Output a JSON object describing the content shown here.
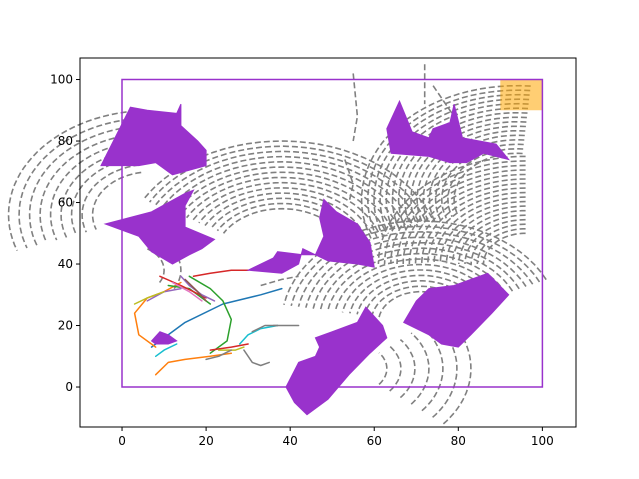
{
  "chart_data": {
    "type": "line",
    "title": "",
    "xlabel": "",
    "ylabel": "",
    "xlim": [
      -10,
      108
    ],
    "ylim": [
      -13,
      107
    ],
    "x_ticks": [
      0,
      20,
      40,
      60,
      80,
      100
    ],
    "y_ticks": [
      0,
      20,
      40,
      60,
      80,
      100
    ],
    "grid": false,
    "colors": {
      "boundary": "#9932CC",
      "obstacle": "#9932CC",
      "goal": "#FFA500",
      "explored": "#808080"
    },
    "boundary": [
      [
        0,
        0
      ],
      [
        100,
        0
      ],
      [
        100,
        100
      ],
      [
        0,
        100
      ]
    ],
    "goal_region": [
      [
        90,
        90
      ],
      [
        100,
        90
      ],
      [
        100,
        100
      ],
      [
        90,
        100
      ]
    ],
    "obstacles": [
      [
        [
          -5,
          72
        ],
        [
          2,
          91
        ],
        [
          6,
          90
        ],
        [
          13,
          89
        ],
        [
          14,
          92
        ],
        [
          14,
          85
        ],
        [
          18,
          80
        ],
        [
          20,
          77
        ],
        [
          20,
          72
        ],
        [
          12,
          69
        ],
        [
          8,
          73
        ],
        [
          4,
          72
        ]
      ],
      [
        [
          -4,
          53
        ],
        [
          7,
          57
        ],
        [
          15,
          63
        ],
        [
          17,
          64
        ],
        [
          15,
          59
        ],
        [
          15,
          52
        ],
        [
          22,
          48
        ],
        [
          19,
          45
        ],
        [
          16,
          43
        ],
        [
          12,
          40
        ],
        [
          7,
          44
        ],
        [
          4,
          49
        ]
      ],
      [
        [
          30,
          38
        ],
        [
          36,
          42
        ],
        [
          37,
          44
        ],
        [
          43,
          43
        ],
        [
          46,
          43
        ],
        [
          48,
          49
        ],
        [
          47,
          55
        ],
        [
          48,
          61
        ],
        [
          51,
          57
        ],
        [
          56,
          53
        ],
        [
          59,
          47
        ],
        [
          60,
          39
        ],
        [
          56,
          40
        ],
        [
          49,
          41
        ],
        [
          43,
          45
        ],
        [
          42,
          40
        ],
        [
          38,
          37
        ]
      ],
      [
        [
          64,
          76
        ],
        [
          63,
          84
        ],
        [
          66,
          93
        ],
        [
          69,
          83
        ],
        [
          73,
          81
        ],
        [
          74,
          84
        ],
        [
          78,
          86
        ],
        [
          79,
          92
        ],
        [
          81,
          81
        ],
        [
          89,
          79
        ],
        [
          92,
          74
        ],
        [
          86,
          76
        ],
        [
          82,
          73
        ],
        [
          78,
          73
        ],
        [
          73,
          75
        ]
      ],
      [
        [
          67,
          21
        ],
        [
          70,
          28
        ],
        [
          73,
          32
        ],
        [
          79,
          33
        ],
        [
          87,
          37
        ],
        [
          92,
          30
        ],
        [
          88,
          24
        ],
        [
          83,
          17
        ],
        [
          80,
          13
        ],
        [
          76,
          14
        ],
        [
          73,
          17
        ]
      ],
      [
        [
          42,
          8
        ],
        [
          46,
          10
        ],
        [
          47,
          13
        ],
        [
          46,
          16
        ],
        [
          50,
          18
        ],
        [
          56,
          21
        ],
        [
          58,
          26
        ],
        [
          62,
          20
        ],
        [
          63,
          16
        ],
        [
          59,
          11
        ],
        [
          54,
          4
        ],
        [
          49,
          -4
        ],
        [
          44,
          -9
        ],
        [
          41,
          -5
        ],
        [
          39,
          0
        ]
      ],
      [
        [
          7,
          15
        ],
        [
          9,
          18
        ],
        [
          11,
          17
        ],
        [
          13,
          15
        ],
        [
          11,
          14
        ],
        [
          8,
          14
        ]
      ]
    ],
    "explored_fans": [
      {
        "cx": 94,
        "cy": 61,
        "r0": 15,
        "r1": 37,
        "a0": 85,
        "a1": 200,
        "rings": 16
      },
      {
        "cx": 96,
        "cy": 40,
        "r0": 10,
        "r1": 35,
        "a0": 90,
        "a1": 180,
        "rings": 18
      },
      {
        "cx": 38,
        "cy": 42,
        "r0": 16,
        "r1": 38,
        "a0": 20,
        "a1": 150,
        "rings": 14
      },
      {
        "cx": 71,
        "cy": 21,
        "r0": 10,
        "r1": 33,
        "a0": 25,
        "a1": 170,
        "rings": 14
      },
      {
        "cx": 55,
        "cy": 6,
        "r0": 8,
        "r1": 28,
        "a0": -40,
        "a1": 40,
        "rings": 7
      },
      {
        "cx": 7,
        "cy": 56,
        "r0": 14,
        "r1": 34,
        "a0": 100,
        "a1": 200,
        "rings": 9
      },
      {
        "cx": 2,
        "cy": 38,
        "r0": 8,
        "r1": 12,
        "a0": -30,
        "a1": 60,
        "rings": 2
      }
    ],
    "explored_segments": [
      [
        [
          55,
          102
        ],
        [
          56,
          88
        ],
        [
          55,
          80
        ]
      ],
      [
        [
          72,
          105
        ],
        [
          72,
          92
        ]
      ],
      [
        [
          74,
          98
        ],
        [
          80,
          86
        ]
      ],
      [
        [
          53,
          74
        ],
        [
          55,
          66
        ],
        [
          54,
          60
        ]
      ],
      [
        [
          33,
          33
        ],
        [
          38,
          35
        ],
        [
          42,
          36
        ]
      ]
    ],
    "series": [
      {
        "color": "#1f77b4",
        "points": [
          [
            7,
            13
          ],
          [
            15,
            21
          ],
          [
            24,
            27
          ],
          [
            33,
            30
          ],
          [
            38,
            32
          ]
        ]
      },
      {
        "color": "#ff7f0e",
        "points": [
          [
            8,
            4
          ],
          [
            11,
            8
          ],
          [
            15,
            9
          ],
          [
            21,
            10
          ],
          [
            26,
            11
          ]
        ]
      },
      {
        "color": "#ff7f0e",
        "points": [
          [
            8,
            13
          ],
          [
            4,
            17
          ],
          [
            3,
            24
          ],
          [
            6,
            29
          ],
          [
            10,
            31
          ],
          [
            14,
            34
          ]
        ]
      },
      {
        "color": "#2ca02c",
        "points": [
          [
            16,
            36
          ],
          [
            21,
            32
          ],
          [
            24,
            28
          ],
          [
            26,
            22
          ],
          [
            25,
            15
          ],
          [
            21,
            11
          ]
        ]
      },
      {
        "color": "#2ca02c",
        "points": [
          [
            11,
            33
          ],
          [
            16,
            32
          ],
          [
            19,
            29
          ],
          [
            21,
            27
          ]
        ]
      },
      {
        "color": "#d62728",
        "points": [
          [
            9,
            36
          ],
          [
            14,
            33
          ],
          [
            17,
            31
          ],
          [
            20,
            29
          ]
        ]
      },
      {
        "color": "#d62728",
        "points": [
          [
            17,
            36
          ],
          [
            21,
            37
          ],
          [
            26,
            38
          ],
          [
            30,
            38
          ]
        ]
      },
      {
        "color": "#d62728",
        "points": [
          [
            21,
            12
          ],
          [
            26,
            13
          ],
          [
            30,
            14
          ]
        ]
      },
      {
        "color": "#9467bd",
        "points": [
          [
            14,
            36
          ],
          [
            16,
            33
          ],
          [
            19,
            30
          ],
          [
            22,
            28
          ]
        ]
      },
      {
        "color": "#9467bd",
        "points": [
          [
            6,
            28
          ],
          [
            10,
            31
          ],
          [
            14,
            32
          ]
        ]
      },
      {
        "color": "#8c564b",
        "points": [
          [
            15,
            35
          ],
          [
            18,
            31
          ],
          [
            20,
            28
          ]
        ]
      },
      {
        "color": "#e377c2",
        "points": [
          [
            12,
            34
          ],
          [
            16,
            31
          ],
          [
            19,
            28
          ]
        ]
      },
      {
        "color": "#bcbd22",
        "points": [
          [
            3,
            27
          ],
          [
            6,
            29
          ],
          [
            10,
            31
          ]
        ]
      },
      {
        "color": "#bcbd22",
        "points": [
          [
            23,
            12
          ],
          [
            27,
            12
          ],
          [
            29,
            13
          ]
        ]
      },
      {
        "color": "#17becf",
        "points": [
          [
            8,
            10
          ],
          [
            10,
            12
          ],
          [
            13,
            14
          ]
        ]
      },
      {
        "color": "#17becf",
        "points": [
          [
            28,
            14
          ],
          [
            30,
            17
          ],
          [
            33,
            19
          ],
          [
            37,
            20
          ]
        ]
      },
      {
        "color": "#7f7f7f",
        "points": [
          [
            29,
            12
          ],
          [
            31,
            8
          ],
          [
            33,
            7
          ],
          [
            35,
            8
          ]
        ]
      },
      {
        "color": "#7f7f7f",
        "points": [
          [
            31,
            18
          ],
          [
            34,
            20
          ],
          [
            37,
            20
          ]
        ]
      },
      {
        "color": "#7f7f7f",
        "points": [
          [
            36,
            20
          ],
          [
            39,
            20
          ],
          [
            42,
            20
          ]
        ]
      },
      {
        "color": "#7f7f7f",
        "points": [
          [
            20,
            9
          ],
          [
            23,
            10
          ],
          [
            26,
            12
          ]
        ]
      }
    ]
  }
}
